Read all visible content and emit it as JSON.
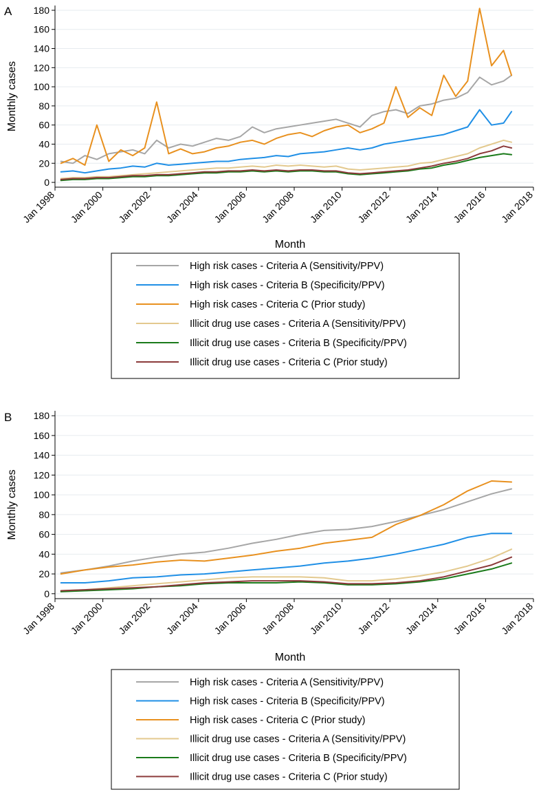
{
  "chart_data": [
    {
      "type": "line",
      "panel_label": "A",
      "xlabel": "Month",
      "ylabel": "Monthly cases",
      "xlim": [
        "1998-01",
        "2018-01"
      ],
      "ylim": [
        -5,
        185
      ],
      "x_ticks": [
        "Jan 1998",
        "Jan 2000",
        "Jan 2002",
        "Jan 2004",
        "Jan 2006",
        "Jan 2008",
        "Jan 2010",
        "Jan 2012",
        "Jan 2014",
        "Jan 2016",
        "Jan 2018"
      ],
      "y_ticks": [
        "0",
        "20",
        "40",
        "60",
        "80",
        "100",
        "120",
        "140",
        "160",
        "180"
      ],
      "grid": true,
      "legend_position": "bottom",
      "series": [
        {
          "name": "High risk cases - Criteria A (Sensitivity/PPV)",
          "color": "#a6a6a6",
          "x": [
            "1998-04",
            "1998-10",
            "1999-04",
            "1999-10",
            "2000-04",
            "2000-10",
            "2001-04",
            "2001-10",
            "2002-04",
            "2002-10",
            "2003-04",
            "2003-10",
            "2004-04",
            "2004-10",
            "2005-04",
            "2005-10",
            "2006-04",
            "2006-10",
            "2007-04",
            "2007-10",
            "2008-04",
            "2008-10",
            "2009-04",
            "2009-10",
            "2010-04",
            "2010-10",
            "2011-04",
            "2011-10",
            "2012-04",
            "2012-10",
            "2013-04",
            "2013-10",
            "2014-04",
            "2014-10",
            "2015-04",
            "2015-10",
            "2016-04",
            "2016-10",
            "2017-02"
          ],
          "values": [
            22,
            20,
            28,
            24,
            30,
            32,
            34,
            30,
            44,
            36,
            40,
            38,
            42,
            46,
            44,
            48,
            58,
            52,
            56,
            58,
            60,
            62,
            64,
            66,
            62,
            58,
            70,
            74,
            76,
            72,
            80,
            82,
            86,
            88,
            94,
            110,
            102,
            106,
            112
          ]
        },
        {
          "name": "High risk cases - Criteria B (Specificity/PPV)",
          "color": "#1f8fe6",
          "x": [
            "1998-04",
            "1998-10",
            "1999-04",
            "1999-10",
            "2000-04",
            "2000-10",
            "2001-04",
            "2001-10",
            "2002-04",
            "2002-10",
            "2003-04",
            "2003-10",
            "2004-04",
            "2004-10",
            "2005-04",
            "2005-10",
            "2006-04",
            "2006-10",
            "2007-04",
            "2007-10",
            "2008-04",
            "2008-10",
            "2009-04",
            "2009-10",
            "2010-04",
            "2010-10",
            "2011-04",
            "2011-10",
            "2012-04",
            "2012-10",
            "2013-04",
            "2013-10",
            "2014-04",
            "2014-10",
            "2015-04",
            "2015-10",
            "2016-04",
            "2016-10",
            "2017-02"
          ],
          "values": [
            11,
            12,
            10,
            12,
            14,
            15,
            17,
            16,
            20,
            18,
            19,
            20,
            21,
            22,
            22,
            24,
            25,
            26,
            28,
            27,
            30,
            31,
            32,
            34,
            36,
            34,
            36,
            40,
            42,
            44,
            46,
            48,
            50,
            54,
            58,
            76,
            60,
            62,
            74
          ]
        },
        {
          "name": "High risk cases - Criteria C (Prior study)",
          "color": "#e8901e",
          "x": [
            "1998-04",
            "1998-10",
            "1999-04",
            "1999-10",
            "2000-04",
            "2000-10",
            "2001-04",
            "2001-10",
            "2002-04",
            "2002-10",
            "2003-04",
            "2003-10",
            "2004-04",
            "2004-10",
            "2005-04",
            "2005-10",
            "2006-04",
            "2006-10",
            "2007-04",
            "2007-10",
            "2008-04",
            "2008-10",
            "2009-04",
            "2009-10",
            "2010-04",
            "2010-10",
            "2011-04",
            "2011-10",
            "2012-04",
            "2012-10",
            "2013-04",
            "2013-10",
            "2014-04",
            "2014-10",
            "2015-04",
            "2015-10",
            "2016-04",
            "2016-10",
            "2017-02"
          ],
          "values": [
            20,
            25,
            18,
            60,
            22,
            34,
            28,
            36,
            84,
            30,
            35,
            30,
            32,
            36,
            38,
            42,
            44,
            40,
            46,
            50,
            52,
            48,
            54,
            58,
            60,
            52,
            56,
            62,
            100,
            68,
            78,
            70,
            112,
            90,
            106,
            182,
            122,
            138,
            112
          ]
        },
        {
          "name": "Illicit drug use cases - Criteria A (Sensitivity/PPV)",
          "color": "#e3c98e",
          "x": [
            "1998-04",
            "1998-10",
            "1999-04",
            "1999-10",
            "2000-04",
            "2000-10",
            "2001-04",
            "2001-10",
            "2002-04",
            "2002-10",
            "2003-04",
            "2003-10",
            "2004-04",
            "2004-10",
            "2005-04",
            "2005-10",
            "2006-04",
            "2006-10",
            "2007-04",
            "2007-10",
            "2008-04",
            "2008-10",
            "2009-04",
            "2009-10",
            "2010-04",
            "2010-10",
            "2011-04",
            "2011-10",
            "2012-04",
            "2012-10",
            "2013-04",
            "2013-10",
            "2014-04",
            "2014-10",
            "2015-04",
            "2015-10",
            "2016-04",
            "2016-10",
            "2017-02"
          ],
          "values": [
            4,
            5,
            5,
            6,
            6,
            7,
            8,
            9,
            10,
            11,
            12,
            13,
            14,
            15,
            15,
            16,
            17,
            16,
            18,
            17,
            18,
            17,
            16,
            17,
            14,
            13,
            14,
            15,
            16,
            17,
            20,
            21,
            24,
            27,
            30,
            36,
            40,
            44,
            42
          ]
        },
        {
          "name": "Illicit drug use cases - Criteria B (Specificity/PPV)",
          "color": "#1a7a1a",
          "x": [
            "1998-04",
            "1998-10",
            "1999-04",
            "1999-10",
            "2000-04",
            "2000-10",
            "2001-04",
            "2001-10",
            "2002-04",
            "2002-10",
            "2003-04",
            "2003-10",
            "2004-04",
            "2004-10",
            "2005-04",
            "2005-10",
            "2006-04",
            "2006-10",
            "2007-04",
            "2007-10",
            "2008-04",
            "2008-10",
            "2009-04",
            "2009-10",
            "2010-04",
            "2010-10",
            "2011-04",
            "2011-10",
            "2012-04",
            "2012-10",
            "2013-04",
            "2013-10",
            "2014-04",
            "2014-10",
            "2015-04",
            "2015-10",
            "2016-04",
            "2016-10",
            "2017-02"
          ],
          "values": [
            2,
            3,
            3,
            4,
            4,
            5,
            6,
            6,
            7,
            7,
            8,
            9,
            10,
            10,
            11,
            11,
            12,
            11,
            12,
            11,
            12,
            12,
            11,
            11,
            9,
            8,
            9,
            10,
            11,
            12,
            14,
            15,
            18,
            20,
            23,
            26,
            28,
            30,
            29
          ]
        },
        {
          "name": "Illicit drug use cases - Criteria C (Prior study)",
          "color": "#8b3a3a",
          "x": [
            "1998-04",
            "1998-10",
            "1999-04",
            "1999-10",
            "2000-04",
            "2000-10",
            "2001-04",
            "2001-10",
            "2002-04",
            "2002-10",
            "2003-04",
            "2003-10",
            "2004-04",
            "2004-10",
            "2005-04",
            "2005-10",
            "2006-04",
            "2006-10",
            "2007-04",
            "2007-10",
            "2008-04",
            "2008-10",
            "2009-04",
            "2009-10",
            "2010-04",
            "2010-10",
            "2011-04",
            "2011-10",
            "2012-04",
            "2012-10",
            "2013-04",
            "2013-10",
            "2014-04",
            "2014-10",
            "2015-04",
            "2015-10",
            "2016-04",
            "2016-10",
            "2017-02"
          ],
          "values": [
            3,
            4,
            4,
            5,
            5,
            6,
            7,
            7,
            8,
            8,
            9,
            10,
            11,
            11,
            12,
            12,
            13,
            12,
            13,
            12,
            13,
            13,
            12,
            12,
            10,
            9,
            10,
            11,
            12,
            13,
            15,
            17,
            20,
            22,
            25,
            30,
            33,
            38,
            36
          ]
        }
      ]
    },
    {
      "type": "line",
      "panel_label": "B",
      "xlabel": "Month",
      "ylabel": "Monthly cases",
      "xlim": [
        "1998-01",
        "2018-01"
      ],
      "ylim": [
        -5,
        185
      ],
      "x_ticks": [
        "Jan 1998",
        "Jan 2000",
        "Jan 2002",
        "Jan 2004",
        "Jan 2006",
        "Jan 2008",
        "Jan 2010",
        "Jan 2012",
        "Jan 2014",
        "Jan 2016",
        "Jan 2018"
      ],
      "y_ticks": [
        "0",
        "20",
        "40",
        "60",
        "80",
        "100",
        "120",
        "140",
        "160",
        "180"
      ],
      "grid": true,
      "legend_position": "bottom",
      "series": [
        {
          "name": "High risk cases - Criteria A (Sensitivity/PPV)",
          "color": "#a6a6a6",
          "x": [
            "1998-04",
            "1999-04",
            "2000-04",
            "2001-04",
            "2002-04",
            "2003-04",
            "2004-04",
            "2005-04",
            "2006-04",
            "2007-04",
            "2008-04",
            "2009-04",
            "2010-04",
            "2011-04",
            "2012-04",
            "2013-04",
            "2014-04",
            "2015-04",
            "2016-04",
            "2017-02"
          ],
          "values": [
            21,
            24,
            28,
            33,
            37,
            40,
            42,
            46,
            51,
            55,
            60,
            64,
            65,
            68,
            73,
            79,
            85,
            93,
            101,
            106
          ]
        },
        {
          "name": "High risk cases - Criteria B (Specificity/PPV)",
          "color": "#1f8fe6",
          "x": [
            "1998-04",
            "1999-04",
            "2000-04",
            "2001-04",
            "2002-04",
            "2003-04",
            "2004-04",
            "2005-04",
            "2006-04",
            "2007-04",
            "2008-04",
            "2009-04",
            "2010-04",
            "2011-04",
            "2012-04",
            "2013-04",
            "2014-04",
            "2015-04",
            "2016-04",
            "2017-02"
          ],
          "values": [
            11,
            11,
            13,
            16,
            17,
            19,
            20,
            22,
            24,
            26,
            28,
            31,
            33,
            36,
            40,
            45,
            50,
            57,
            61,
            61
          ]
        },
        {
          "name": "High risk cases - Criteria C (Prior study)",
          "color": "#e8901e",
          "x": [
            "1998-04",
            "1999-04",
            "2000-04",
            "2001-04",
            "2002-04",
            "2003-04",
            "2004-04",
            "2005-04",
            "2006-04",
            "2007-04",
            "2008-04",
            "2009-04",
            "2010-04",
            "2011-04",
            "2012-04",
            "2013-04",
            "2014-04",
            "2015-04",
            "2016-04",
            "2017-02"
          ],
          "values": [
            20,
            24,
            27,
            29,
            32,
            34,
            33,
            36,
            39,
            43,
            46,
            51,
            54,
            57,
            70,
            79,
            90,
            104,
            114,
            113
          ]
        },
        {
          "name": "Illicit drug use cases - Criteria A (Sensitivity/PPV)",
          "color": "#e3c98e",
          "x": [
            "1998-04",
            "1999-04",
            "2000-04",
            "2001-04",
            "2002-04",
            "2003-04",
            "2004-04",
            "2005-04",
            "2006-04",
            "2007-04",
            "2008-04",
            "2009-04",
            "2010-04",
            "2011-04",
            "2012-04",
            "2013-04",
            "2014-04",
            "2015-04",
            "2016-04",
            "2017-02"
          ],
          "values": [
            3,
            4,
            6,
            8,
            10,
            12,
            14,
            16,
            17,
            17,
            17,
            16,
            13,
            13,
            15,
            18,
            22,
            28,
            36,
            45
          ]
        },
        {
          "name": "Illicit drug use cases - Criteria B (Specificity/PPV)",
          "color": "#1a7a1a",
          "x": [
            "1998-04",
            "1999-04",
            "2000-04",
            "2001-04",
            "2002-04",
            "2003-04",
            "2004-04",
            "2005-04",
            "2006-04",
            "2007-04",
            "2008-04",
            "2009-04",
            "2010-04",
            "2011-04",
            "2012-04",
            "2013-04",
            "2014-04",
            "2015-04",
            "2016-04",
            "2017-02"
          ],
          "values": [
            2,
            3,
            4,
            5,
            7,
            8,
            10,
            11,
            11,
            11,
            12,
            11,
            9,
            9,
            10,
            12,
            15,
            20,
            25,
            31
          ]
        },
        {
          "name": "Illicit drug use cases - Criteria C (Prior study)",
          "color": "#8b3a3a",
          "x": [
            "1998-04",
            "1999-04",
            "2000-04",
            "2001-04",
            "2002-04",
            "2003-04",
            "2004-04",
            "2005-04",
            "2006-04",
            "2007-04",
            "2008-04",
            "2009-04",
            "2010-04",
            "2011-04",
            "2012-04",
            "2013-04",
            "2014-04",
            "2015-04",
            "2016-04",
            "2017-02"
          ],
          "values": [
            3,
            4,
            5,
            6,
            7,
            9,
            11,
            12,
            13,
            13,
            13,
            12,
            10,
            10,
            11,
            13,
            17,
            23,
            29,
            37
          ]
        }
      ]
    }
  ]
}
